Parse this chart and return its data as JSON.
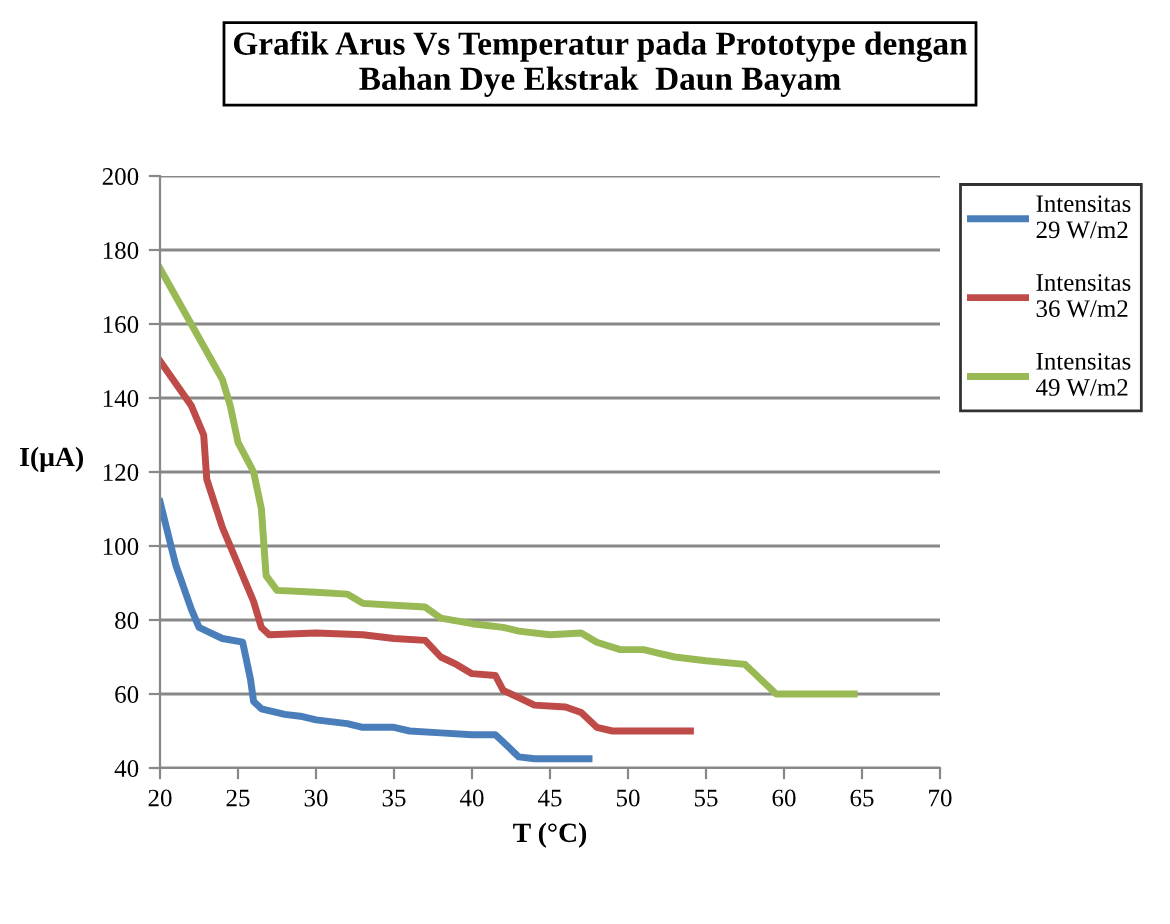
{
  "chart_data": {
    "type": "line",
    "title": "Grafik Arus Vs Temperatur pada Prototype dengan\nBahan Dye Ekstrak  Daun Bayam",
    "xlabel": "T (°C)",
    "ylabel": "I(μA)",
    "xlim": [
      20,
      70
    ],
    "xticks": [
      20,
      25,
      30,
      35,
      40,
      45,
      50,
      55,
      60,
      65,
      70
    ],
    "ylim": [
      40,
      200
    ],
    "yticks": [
      40,
      60,
      80,
      100,
      120,
      140,
      160,
      180,
      200
    ],
    "grid": "y",
    "legend": "right",
    "marker": "none",
    "line_style": "solid",
    "series": [
      {
        "name": "Intensitas\n29 W/m2",
        "color": "#4a7ebb",
        "x": [
          20,
          21,
          22,
          22.5,
          23,
          24,
          25.3,
          25.8,
          26,
          26.5,
          28,
          29,
          30,
          32,
          33,
          35,
          36,
          38,
          40,
          41.5,
          42,
          43,
          44,
          47.5
        ],
        "values": [
          112,
          95,
          83,
          78,
          77,
          75,
          74,
          64,
          58,
          56,
          54.5,
          54,
          53,
          52,
          51,
          51,
          50,
          49.5,
          49,
          49,
          47,
          43,
          42.5,
          42.5
        ]
      },
      {
        "name": "Intensitas\n36 W/m2",
        "color": "#be4b48",
        "x": [
          20,
          22,
          22.8,
          23,
          24,
          25,
          26,
          26.5,
          27,
          30,
          33,
          35,
          37,
          38,
          39,
          40,
          41.5,
          42,
          43,
          44,
          46,
          47,
          48,
          49,
          54
        ],
        "values": [
          150,
          138,
          130,
          118,
          105,
          95,
          85,
          78,
          76,
          76.5,
          76,
          75,
          74.5,
          70,
          68,
          65.5,
          65,
          61,
          59,
          57,
          56.5,
          55,
          51,
          50,
          50
        ]
      },
      {
        "name": "Intensitas\n49 W/m2",
        "color": "#98b954",
        "x": [
          20,
          22,
          24,
          24.5,
          25,
          26,
          26.5,
          26.8,
          27.5,
          30,
          32,
          33,
          35,
          37,
          38,
          40,
          42,
          43,
          45,
          47,
          48,
          49.5,
          51,
          52,
          53,
          55,
          57.5,
          58,
          59.5,
          61,
          64.5
        ],
        "values": [
          175,
          160,
          145,
          138,
          128,
          120,
          110,
          92,
          88,
          87.5,
          87,
          84.5,
          84,
          83.5,
          80.5,
          79,
          78,
          77,
          76,
          76.5,
          74,
          72,
          72,
          71,
          70,
          69,
          68,
          66,
          60,
          60,
          60
        ]
      }
    ]
  }
}
